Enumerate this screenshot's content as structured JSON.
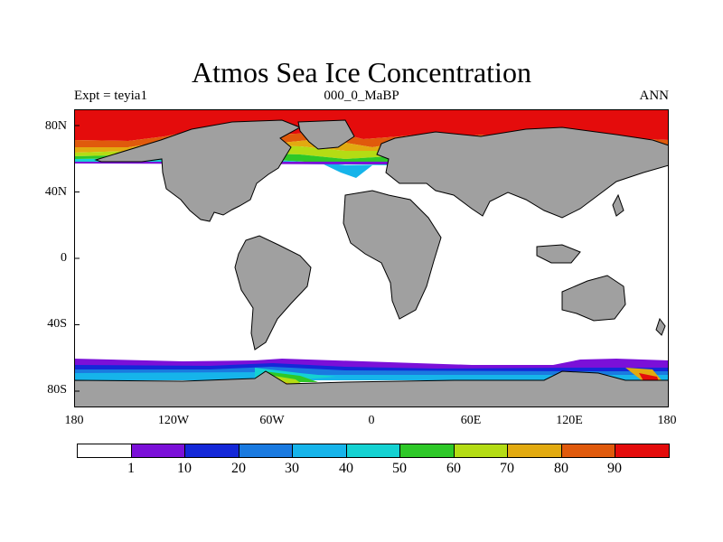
{
  "title": "Atmos Sea Ice Concentration",
  "subtitle_left": "Expt = teyia1",
  "subtitle_center": "000_0_MaBP",
  "subtitle_right": "ANN",
  "colors": {
    "land": "#a0a0a0",
    "ocean": "#ffffff",
    "coast": "#000000"
  },
  "colorbar": {
    "colors": [
      "#ffffff",
      "#7b10d8",
      "#1428d8",
      "#1a7ae0",
      "#16b4ea",
      "#14d2d2",
      "#2ec828",
      "#b4dc14",
      "#e2aa10",
      "#e05a0c",
      "#e40c0c"
    ],
    "labels": [
      "1",
      "10",
      "20",
      "30",
      "40",
      "50",
      "60",
      "70",
      "80",
      "90"
    ]
  },
  "chart_data": {
    "type": "heatmap",
    "title": "Atmos Sea Ice Concentration",
    "variable": "sea ice concentration",
    "levels": [
      1,
      10,
      20,
      30,
      40,
      50,
      60,
      70,
      80,
      90
    ],
    "x_ticks": [
      "180",
      "120W",
      "60W",
      "0",
      "60E",
      "120E",
      "180"
    ],
    "y_ticks": [
      "80N",
      "40N",
      "0",
      "40S",
      "80S"
    ],
    "xlim": [
      -180,
      180
    ],
    "ylim": [
      -90,
      90
    ]
  }
}
